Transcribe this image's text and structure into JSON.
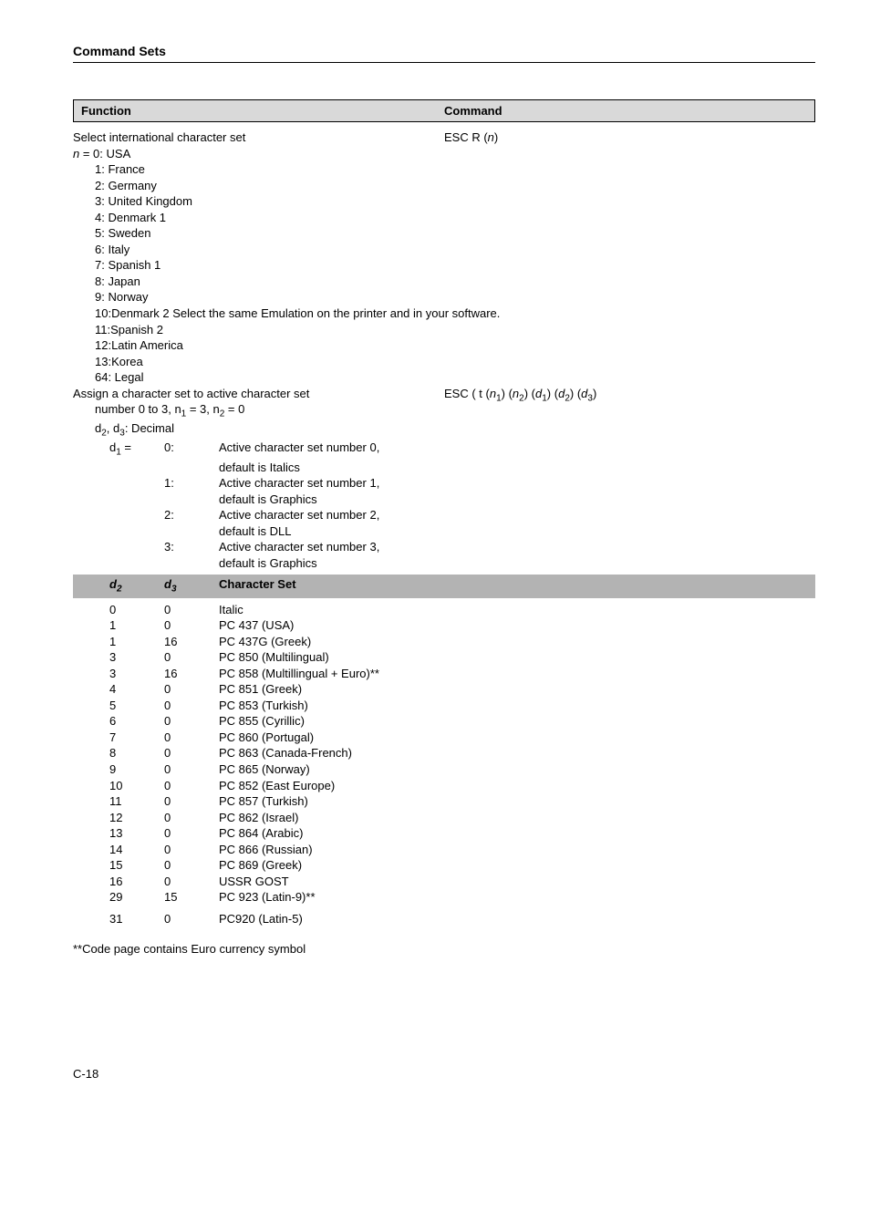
{
  "section_title": "Command Sets",
  "func_header": {
    "function": "Function",
    "command": "Command"
  },
  "select_intl": {
    "label": "Select international character set",
    "command_prefix": "ESC R (",
    "command_var": "n",
    "command_suffix": ")",
    "n_prefix": "n",
    "n_eq": " = 0:  USA",
    "items": [
      "1:   France",
      "2:   Germany",
      "3:   United Kingdom",
      "4:   Denmark 1",
      "5:   Sweden",
      "6:   Italy",
      "7:   Spanish 1",
      "8:   Japan",
      "9:   Norway",
      "10:Denmark 2 Select the same Emulation on the printer and in your software.",
      "11:Spanish 2",
      "12:Latin America",
      "13:Korea",
      "64: Legal"
    ]
  },
  "assign": {
    "label": "Assign a character set to active character set",
    "command_prefix": "ESC ( t (",
    "n1": "n",
    "s1": "1",
    "n2": "n",
    "s2": "2",
    "d1": "d",
    "sd1": "1",
    "d2": "d",
    "sd2": "2",
    "d3": "d",
    "sd3": "3",
    "line2_a": "number 0 to 3, n",
    "line2_b": " = 3, n",
    "line2_c": " = 0",
    "line3_a": "d",
    "line3_b": ", d",
    "line3_c": ": Decimal",
    "d1_label": "d",
    "d1_sub": "1",
    "d1_eq": " =",
    "rows": [
      {
        "k": "0:",
        "v1": "Active character set number 0,",
        "v2": "default is Italics"
      },
      {
        "k": "1:",
        "v1": "Active character set number 1,",
        "v2": "default is Graphics"
      },
      {
        "k": "2:",
        "v1": "Active character set number 2,",
        "v2": "default is DLL"
      },
      {
        "k": "3:",
        "v1": "Active character set number 3,",
        "v2": "default is Graphics"
      }
    ]
  },
  "charset_header": {
    "c1a": "d",
    "c1b": "2",
    "c2a": "d",
    "c2b": "3",
    "c3": "Character Set"
  },
  "charsets": [
    {
      "d2": "0",
      "d3": "0",
      "name": "Italic"
    },
    {
      "d2": "1",
      "d3": "0",
      "name": "PC 437 (USA)"
    },
    {
      "d2": "1",
      "d3": "16",
      "name": "PC 437G (Greek)"
    },
    {
      "d2": "3",
      "d3": "0",
      "name": "PC 850 (Multilingual)"
    },
    {
      "d2": "3",
      "d3": "16",
      "name": "PC 858 (Multillingual + Euro)**"
    },
    {
      "d2": "4",
      "d3": "0",
      "name": "PC 851 (Greek)"
    },
    {
      "d2": "5",
      "d3": "0",
      "name": "PC 853 (Turkish)"
    },
    {
      "d2": "6",
      "d3": "0",
      "name": "PC 855 (Cyrillic)"
    },
    {
      "d2": "7",
      "d3": "0",
      "name": "PC 860 (Portugal)"
    },
    {
      "d2": "8",
      "d3": "0",
      "name": "PC 863 (Canada-French)"
    },
    {
      "d2": "9",
      "d3": "0",
      "name": "PC 865 (Norway)"
    },
    {
      "d2": "10",
      "d3": "0",
      "name": "PC 852 (East Europe)"
    },
    {
      "d2": "11",
      "d3": "0",
      "name": "PC 857 (Turkish)"
    },
    {
      "d2": "12",
      "d3": "0",
      "name": "PC 862 (Israel)"
    },
    {
      "d2": "13",
      "d3": "0",
      "name": "PC 864 (Arabic)"
    },
    {
      "d2": "14",
      "d3": "0",
      "name": "PC 866 (Russian)"
    },
    {
      "d2": "15",
      "d3": "0",
      "name": "PC 869 (Greek)"
    },
    {
      "d2": "16",
      "d3": "0",
      "name": "USSR GOST"
    },
    {
      "d2": "29",
      "d3": "15",
      "name": "PC 923 (Latin-9)**"
    },
    {
      "d2": "31",
      "d3": "0",
      "name": "PC920 (Latin-5)"
    }
  ],
  "footnote": "**Code page contains Euro currency symbol",
  "page_num": "C-18"
}
